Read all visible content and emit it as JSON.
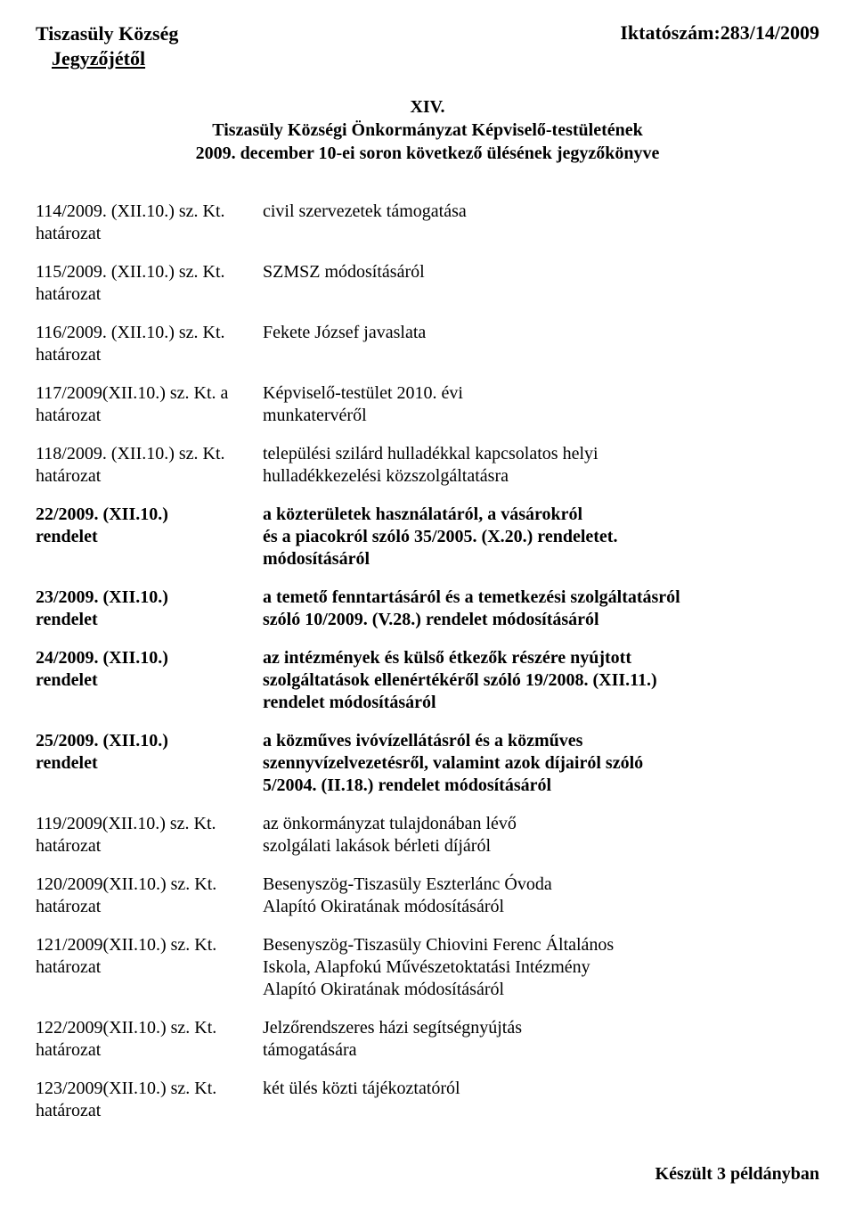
{
  "header": {
    "org_line1": "Tiszasüly Község",
    "org_line2": "Jegyzőjétől",
    "ref_no": "Iktatószám:283/14/2009"
  },
  "center": {
    "line1": "XIV.",
    "line2": "Tiszasüly Községi Önkormányzat Képviselő-testületének",
    "line3": "2009. december 10-ei soron következő ülésének jegyzőkönyve"
  },
  "rows": [
    {
      "left1": "114/2009. (XII.10.) sz. Kt.",
      "left2": "határozat",
      "right1": "civil szervezetek támogatása",
      "bold": false
    },
    {
      "left1": "115/2009. (XII.10.) sz. Kt.",
      "left2": "határozat",
      "right1": "SZMSZ módosításáról",
      "bold": false
    },
    {
      "left1": "116/2009. (XII.10.) sz. Kt.",
      "left2": "határozat",
      "right1": "Fekete József javaslata",
      "bold": false
    },
    {
      "left1": "117/2009(XII.10.) sz. Kt. a",
      "left2": "határozat",
      "right1": "Képviselő-testület 2010. évi",
      "right2": "munkatervéről",
      "bold": false
    },
    {
      "left1": "118/2009. (XII.10.) sz. Kt.",
      "left2": "határozat",
      "right1": "települési szilárd hulladékkal kapcsolatos helyi",
      "right2": "hulladékkezelési közszolgáltatásra",
      "bold": false
    },
    {
      "left1": "22/2009. (XII.10.)",
      "left2": "rendelet",
      "right1": "a közterületek használatáról, a vásárokról",
      "right2": "és a piacokról szóló 35/2005. (X.20.) rendeletet.",
      "right3": "módosításáról",
      "bold": true
    },
    {
      "left1": "23/2009. (XII.10.)",
      "left2": "rendelet",
      "right1": "a temető fenntartásáról és a temetkezési szolgáltatásról",
      "right2": "szóló 10/2009. (V.28.) rendelet módosításáról",
      "bold": true
    },
    {
      "left1": "24/2009. (XII.10.)",
      "left2": "rendelet",
      "right1": "az intézmények és külső étkezők részére nyújtott",
      "right2": "szolgáltatások ellenértékéről szóló 19/2008. (XII.11.)",
      "right3": "rendelet módosításáról",
      "bold": true
    },
    {
      "left1": "25/2009. (XII.10.)",
      "left2": "rendelet",
      "right1": "a közműves ivóvízellátásról és a közműves",
      "right2": "szennyvízelvezetésről, valamint azok díjairól szóló",
      "right3": "5/2004. (II.18.) rendelet módosításáról",
      "bold": true
    },
    {
      "left1": "119/2009(XII.10.) sz. Kt.",
      "left2": "határozat",
      "right1": "az önkormányzat tulajdonában lévő",
      "right2": "szolgálati lakások bérleti díjáról",
      "bold": false
    },
    {
      "left1": "120/2009(XII.10.) sz. Kt.",
      "left2": "határozat",
      "right1": "Besenyszög-Tiszasüly Eszterlánc Óvoda",
      "right2": "Alapító Okiratának módosításáról",
      "bold": false
    },
    {
      "left1": "121/2009(XII.10.) sz. Kt.",
      "left2": "határozat",
      "right1": "Besenyszög-Tiszasüly Chiovini Ferenc Általános",
      "right2": "Iskola, Alapfokú Művészetoktatási Intézmény",
      "right3": "Alapító Okiratának módosításáról",
      "bold": false
    },
    {
      "left1": "122/2009(XII.10.) sz. Kt.",
      "left2": "határozat",
      "right1": "Jelzőrendszeres házi segítségnyújtás",
      "right2": "támogatására",
      "bold": false
    },
    {
      "left1": "123/2009(XII.10.) sz. Kt.",
      "left2": "határozat",
      "right1": "két ülés közti tájékoztatóról",
      "bold": false
    }
  ],
  "footer": "Készült 3 példányban"
}
